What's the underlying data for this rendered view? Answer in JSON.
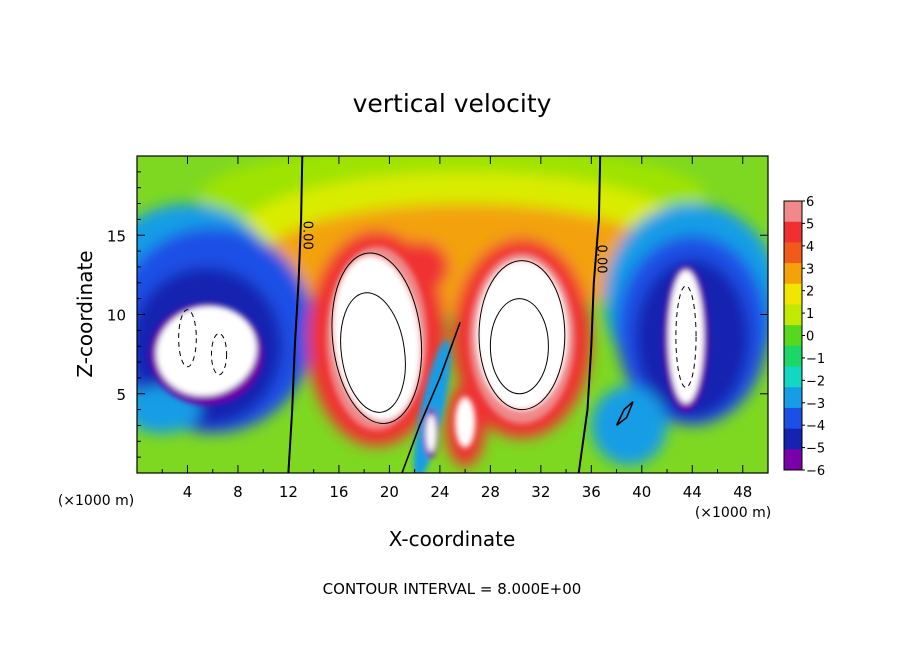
{
  "chart_data": {
    "type": "heatmap",
    "title": "vertical velocity",
    "xlabel": "X-coordinate",
    "ylabel": "Z-coordinate",
    "x_unit_label": "(×1000 m)",
    "xlim": [
      0,
      50
    ],
    "ylim": [
      0,
      20
    ],
    "x_ticks": [
      4,
      8,
      12,
      16,
      20,
      24,
      28,
      32,
      36,
      40,
      44,
      48
    ],
    "y_ticks": [
      5,
      10,
      15
    ],
    "colorbar": {
      "ticks": [
        "6",
        "5",
        "4",
        "3",
        "2",
        "1",
        "0",
        "−1",
        "−2",
        "−3",
        "−4",
        "−5",
        "−6"
      ],
      "levels": [
        6,
        5,
        4,
        3,
        2,
        1,
        0,
        -1,
        -2,
        -3,
        -4,
        -5,
        -6
      ],
      "colors": [
        "#f08a8a",
        "#f03030",
        "#f05a1a",
        "#f3a20a",
        "#f0e600",
        "#c2ea00",
        "#55d81e",
        "#1cd668",
        "#12d8c3",
        "#159de6",
        "#1a50e6",
        "#1622b0",
        "#7a00a8"
      ]
    },
    "zero_contour_label": "0.00",
    "contour_interval_text": "CONTOUR INTERVAL = 8.000E+00",
    "features": [
      {
        "kind": "updraft",
        "center": [
          19,
          8.5
        ],
        "peak": 16
      },
      {
        "kind": "updraft",
        "center": [
          30.5,
          8.5
        ],
        "peak": 16
      },
      {
        "kind": "updraft",
        "center": [
          25.8,
          3.2
        ],
        "peak": 10
      },
      {
        "kind": "downdraft",
        "center": [
          5.5,
          7.5
        ],
        "peak": -12
      },
      {
        "kind": "downdraft",
        "center": [
          43.5,
          8.5
        ],
        "peak": -12
      },
      {
        "kind": "downdraft",
        "center": [
          23.3,
          2.5
        ],
        "peak": -8
      }
    ]
  }
}
